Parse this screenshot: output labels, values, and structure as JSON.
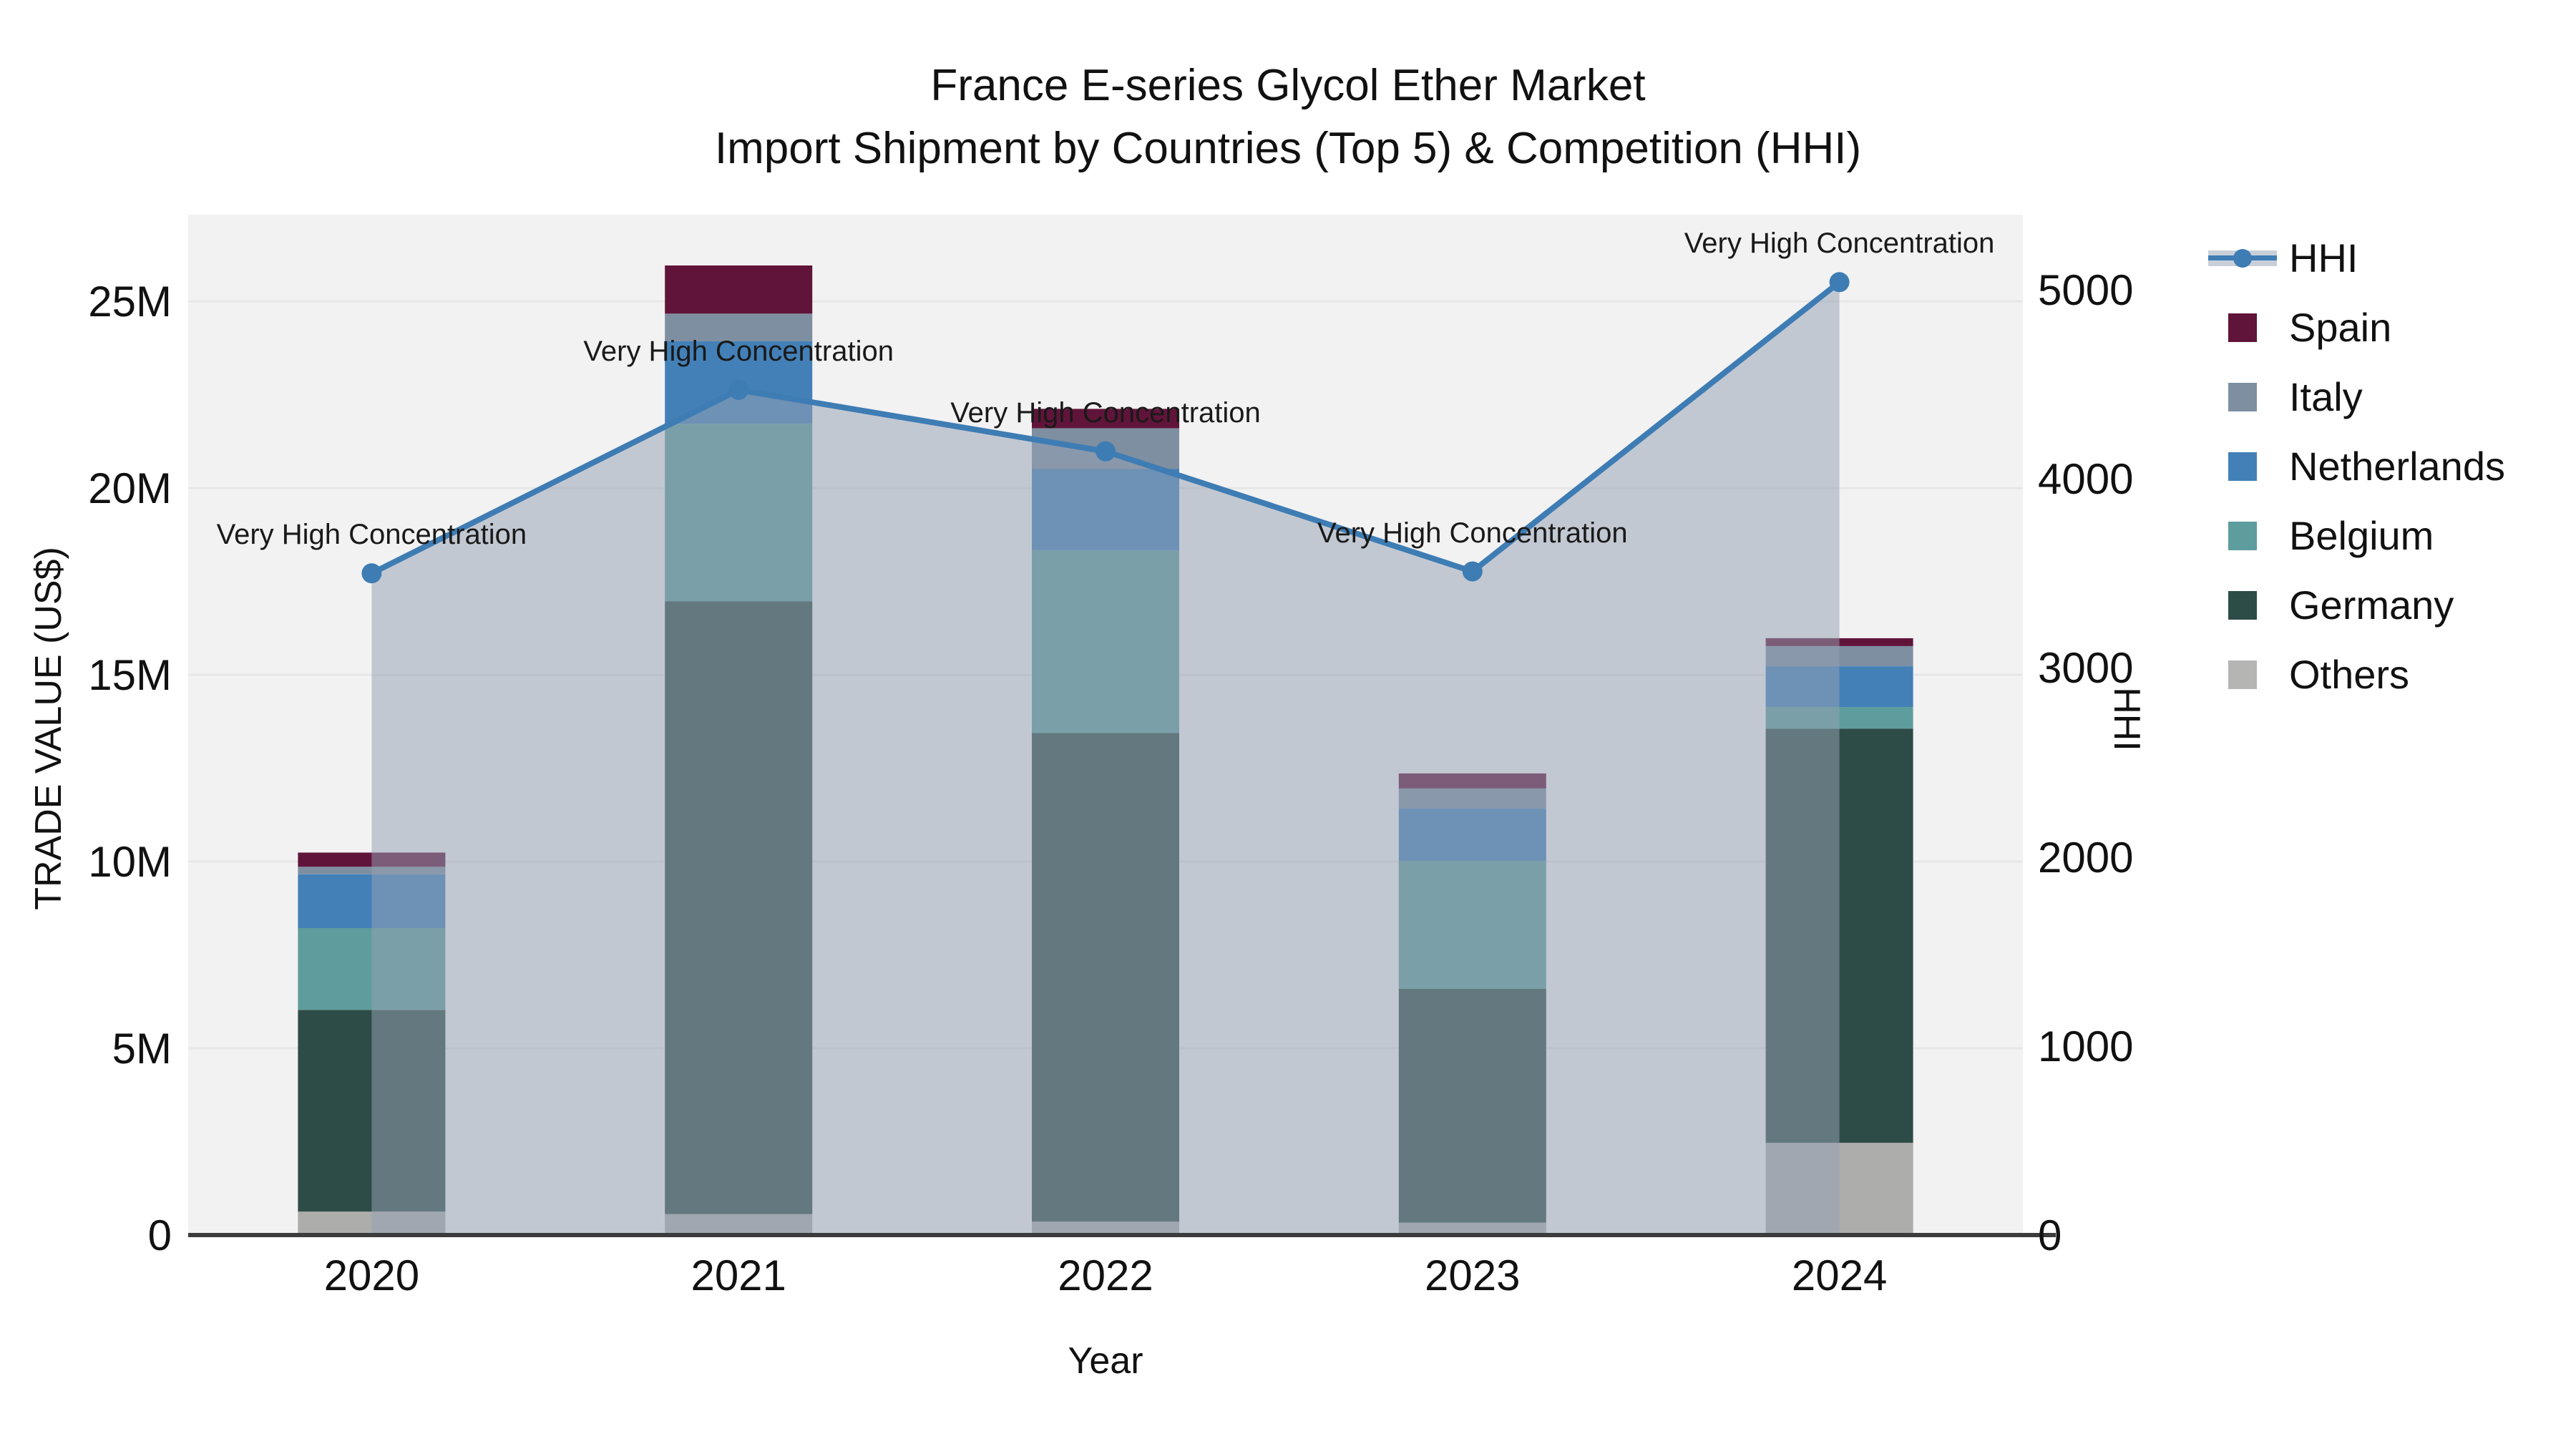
{
  "title": {
    "line1": "France E-series Glycol Ether Market",
    "line2": "Import Shipment by Countries (Top 5) & Competition (HHI)"
  },
  "axes": {
    "x_title": "Year",
    "y_left_title": "TRADE VALUE (US$)",
    "y_left_ticks": [
      {
        "label": "0",
        "value": 0
      },
      {
        "label": "5M",
        "value": 5000000
      },
      {
        "label": "10M",
        "value": 10000000
      },
      {
        "label": "15M",
        "value": 15000000
      },
      {
        "label": "20M",
        "value": 20000000
      },
      {
        "label": "25M",
        "value": 25000000
      }
    ],
    "y_left_max": 27320000,
    "y_right_title": "HHI",
    "y_right_ticks": [
      {
        "label": "0",
        "value": 0
      },
      {
        "label": "1000",
        "value": 1000
      },
      {
        "label": "2000",
        "value": 2000
      },
      {
        "label": "3000",
        "value": 3000
      },
      {
        "label": "4000",
        "value": 4000
      },
      {
        "label": "5000",
        "value": 5000
      }
    ],
    "y_right_max": 5397,
    "grid_on": true
  },
  "chart_data": {
    "type": "bar",
    "subtype": "stacked-bars-with-line",
    "categories": [
      "2020",
      "2021",
      "2022",
      "2023",
      "2024"
    ],
    "series": [
      {
        "name": "Others",
        "color": "#adadab",
        "values": [
          630000,
          560000,
          360000,
          330000,
          2470000
        ]
      },
      {
        "name": "Germany",
        "color": "#2e4c47",
        "values": [
          5400000,
          16410000,
          13080000,
          6260000,
          11090000
        ]
      },
      {
        "name": "Belgium",
        "color": "#5d9d9d",
        "values": [
          2190000,
          4750000,
          4900000,
          3430000,
          580000
        ]
      },
      {
        "name": "Netherlands",
        "color": "#4380b8",
        "values": [
          1440000,
          2210000,
          2170000,
          1400000,
          1090000
        ]
      },
      {
        "name": "Italy",
        "color": "#7d8fa1",
        "values": [
          200000,
          740000,
          1090000,
          540000,
          540000
        ]
      },
      {
        "name": "Spain",
        "color": "#61143a",
        "values": [
          380000,
          1290000,
          520000,
          400000,
          210000
        ]
      }
    ],
    "bar_totals": [
      10240000,
      25960000,
      22120000,
      12360000,
      15980000
    ],
    "line_series": {
      "name": "HHI",
      "axis": "right",
      "color": "#3e7cb4",
      "area_fill": "rgba(150,162,180,0.52)",
      "values": [
        3500,
        4470,
        4145,
        3510,
        5040
      ],
      "annotations": [
        "Very High Concentration",
        "Very High Concentration",
        "Very High Concentration",
        "Very High Concentration",
        "Very High Concentration"
      ]
    },
    "title": "France E-series Glycol Ether Market — Import Shipment by Countries (Top 5) & Competition (HHI)",
    "xlabel": "Year",
    "ylabel_left": "TRADE VALUE (US$)",
    "ylabel_right": "HHI",
    "ylim_left": [
      0,
      27320000
    ],
    "ylim_right": [
      0,
      5397
    ],
    "legend_position": "right"
  },
  "legend": {
    "items": [
      {
        "label": "HHI",
        "type": "line",
        "color": "#3e7cb4",
        "band": "#c9cfd9"
      },
      {
        "label": "Spain",
        "type": "swatch",
        "color": "#61143a"
      },
      {
        "label": "Italy",
        "type": "swatch",
        "color": "#7d8fa1"
      },
      {
        "label": "Netherlands",
        "type": "swatch",
        "color": "#4380b8"
      },
      {
        "label": "Belgium",
        "type": "swatch",
        "color": "#5d9d9d"
      },
      {
        "label": "Germany",
        "type": "swatch",
        "color": "#2e4c47"
      },
      {
        "label": "Others",
        "type": "swatch",
        "color": "#b5b5b3"
      }
    ]
  },
  "colors": {
    "plot_bg": "#f2f2f2",
    "paper_bg": "#ffffff",
    "gridline": "#e7e7e7",
    "axis_line": "#3c3c3c",
    "text": "#111111"
  }
}
